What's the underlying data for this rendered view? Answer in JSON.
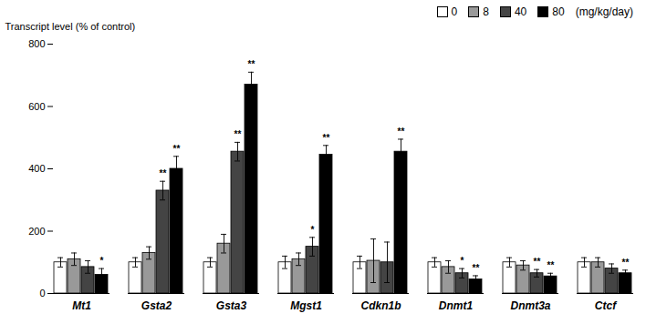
{
  "chart_data": {
    "type": "bar",
    "categories": [
      "Mt1",
      "Gsta2",
      "Gsta3",
      "Mgst1",
      "Cdkn1b",
      "Dnmt1",
      "Dnmt3a",
      "Ctcf"
    ],
    "series": [
      {
        "name": "0",
        "color": "#ffffff",
        "values": [
          100,
          100,
          100,
          100,
          100,
          100,
          100,
          100
        ],
        "errors": [
          15,
          15,
          15,
          20,
          20,
          15,
          15,
          15
        ],
        "significance": [
          null,
          null,
          null,
          null,
          null,
          null,
          null,
          null
        ]
      },
      {
        "name": "8",
        "color": "#999999",
        "values": [
          110,
          130,
          160,
          110,
          105,
          85,
          90,
          100
        ],
        "errors": [
          20,
          20,
          30,
          20,
          70,
          20,
          15,
          15
        ],
        "significance": [
          null,
          null,
          null,
          null,
          null,
          null,
          null,
          null
        ]
      },
      {
        "name": "40",
        "color": "#444444",
        "values": [
          85,
          330,
          455,
          150,
          100,
          65,
          65,
          80
        ],
        "errors": [
          20,
          30,
          30,
          30,
          65,
          15,
          12,
          15
        ],
        "significance": [
          null,
          "**",
          "**",
          "*",
          null,
          "*",
          "**",
          null
        ]
      },
      {
        "name": "80",
        "color": "#000000",
        "values": [
          60,
          400,
          670,
          445,
          455,
          45,
          55,
          65
        ],
        "errors": [
          20,
          40,
          40,
          30,
          40,
          12,
          10,
          10
        ],
        "significance": [
          "*",
          "**",
          "**",
          "**",
          "**",
          "**",
          "**",
          "**"
        ]
      }
    ],
    "ylabel": "Transcript level (% of control)",
    "ylim": [
      0,
      800
    ],
    "yticks": [
      0,
      200,
      400,
      600,
      800
    ],
    "grid": false,
    "legend": "upper right",
    "annotations": [
      "(mg/kg/day)"
    ]
  }
}
